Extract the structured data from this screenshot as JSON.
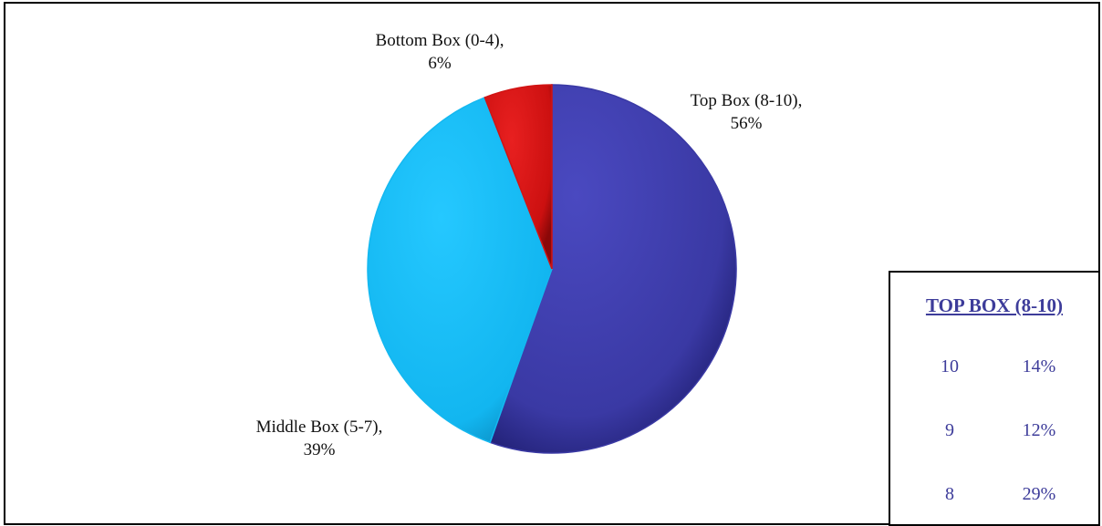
{
  "chart_data": {
    "type": "pie",
    "title": "",
    "slices": [
      {
        "label": "Top Box (8-10)",
        "display_label": "Top Box (8-10),",
        "value": 56,
        "display_value": "56%",
        "color": "#3a39a4"
      },
      {
        "label": "Middle Box (5-7)",
        "display_label": "Middle Box (5-7),",
        "value": 39,
        "display_value": "39%",
        "color": "#14b8f0"
      },
      {
        "label": "Bottom Box (0-4)",
        "display_label": "Bottom Box (0-4),",
        "value": 6,
        "display_value": "6%",
        "color": "#d11414"
      }
    ],
    "start_angle_deg": 0,
    "direction": "clockwise",
    "legend": "none"
  },
  "top_box_table": {
    "title": "TOP BOX (8-10)",
    "rows": [
      {
        "score": "10",
        "percent": "14%"
      },
      {
        "score": "9",
        "percent": "12%"
      },
      {
        "score": "8",
        "percent": "29%"
      }
    ],
    "text_color": "#3d3c9a"
  }
}
